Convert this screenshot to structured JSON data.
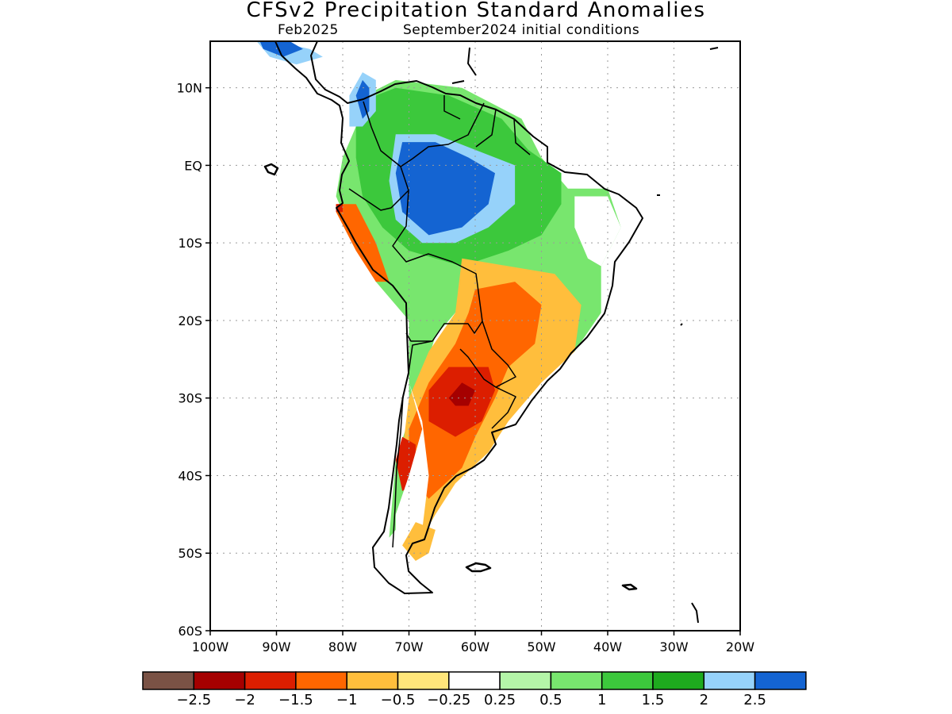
{
  "title": "CFSv2 Precipitation Standard Anomalies",
  "subtitle_left": "Feb2025",
  "subtitle_right": "September2024 initial conditions",
  "map": {
    "projection": "lat-lon",
    "lon_range": [
      -100,
      -20
    ],
    "lat_range": [
      -60,
      16
    ],
    "lat_ticks": [
      {
        "lat": 10,
        "label": "10N"
      },
      {
        "lat": 0,
        "label": "EQ"
      },
      {
        "lat": -10,
        "label": "10S"
      },
      {
        "lat": -20,
        "label": "20S"
      },
      {
        "lat": -30,
        "label": "30S"
      },
      {
        "lat": -40,
        "label": "40S"
      },
      {
        "lat": -50,
        "label": "50S"
      },
      {
        "lat": -60,
        "label": "60S"
      }
    ],
    "lon_ticks": [
      {
        "lon": -100,
        "label": "100W"
      },
      {
        "lon": -90,
        "label": "90W"
      },
      {
        "lon": -80,
        "label": "80W"
      },
      {
        "lon": -70,
        "label": "70W"
      },
      {
        "lon": -60,
        "label": "60W"
      },
      {
        "lon": -50,
        "label": "50W"
      },
      {
        "lon": -40,
        "label": "40W"
      },
      {
        "lon": -30,
        "label": "30W"
      },
      {
        "lon": -20,
        "label": "20W"
      }
    ],
    "grid": "dotted"
  },
  "colorbar": {
    "colors": [
      "#7a5245",
      "#a50000",
      "#dc1e00",
      "#ff6600",
      "#ffbe3c",
      "#ffe67a",
      "#ffffff",
      "#b4f5a8",
      "#78e66e",
      "#3cc83c",
      "#1eaa1e",
      "#96d2fa",
      "#1464d2"
    ],
    "labels": [
      "−2.5",
      "−2",
      "−1.5",
      "−1",
      "−0.5",
      "−0.25",
      "0.25",
      "0.5",
      "1",
      "1.5",
      "2",
      "2.5"
    ]
  },
  "anomaly_regions": [
    {
      "level": 0.5,
      "color": "#78e66e",
      "pts": [
        [
          -79,
          8
        ],
        [
          -72,
          11
        ],
        [
          -62,
          10
        ],
        [
          -53,
          6
        ],
        [
          -50,
          1
        ],
        [
          -46,
          -3
        ],
        [
          -40,
          -3
        ],
        [
          -38,
          -8
        ],
        [
          -41,
          -13
        ],
        [
          -41,
          -19
        ],
        [
          -45,
          -24
        ],
        [
          -55,
          -20
        ],
        [
          -62,
          -18
        ],
        [
          -66,
          -22
        ],
        [
          -69,
          -30
        ],
        [
          -72,
          -38
        ],
        [
          -73,
          -48
        ],
        [
          -71,
          -46
        ],
        [
          -69,
          -38
        ],
        [
          -70,
          -30
        ],
        [
          -70,
          -20
        ],
        [
          -75,
          -15
        ],
        [
          -78,
          -10
        ],
        [
          -81,
          -4
        ],
        [
          -80,
          1
        ],
        [
          -78,
          5
        ]
      ]
    },
    {
      "level": 1.5,
      "color": "#3cc83c",
      "pts": [
        [
          -78,
          8
        ],
        [
          -72,
          10
        ],
        [
          -64,
          9
        ],
        [
          -56,
          6
        ],
        [
          -52,
          2
        ],
        [
          -47,
          -1
        ],
        [
          -47,
          -5
        ],
        [
          -50,
          -9
        ],
        [
          -55,
          -11
        ],
        [
          -62,
          -13
        ],
        [
          -66,
          -12
        ],
        [
          -70,
          -11
        ],
        [
          -74,
          -8
        ],
        [
          -77,
          -4
        ],
        [
          -78,
          1
        ],
        [
          -78,
          5
        ]
      ]
    },
    {
      "level": 2,
      "color": "#96d2fa",
      "pts": [
        [
          -72,
          4
        ],
        [
          -66,
          4
        ],
        [
          -60,
          2
        ],
        [
          -54,
          0
        ],
        [
          -54,
          -5
        ],
        [
          -58,
          -8
        ],
        [
          -63,
          -10
        ],
        [
          -68,
          -10
        ],
        [
          -72,
          -7
        ],
        [
          -73,
          -2
        ]
      ]
    },
    {
      "level": 2.5,
      "color": "#1464d2",
      "pts": [
        [
          -71,
          3
        ],
        [
          -66,
          3
        ],
        [
          -61,
          1
        ],
        [
          -57,
          -1
        ],
        [
          -58,
          -5
        ],
        [
          -62,
          -8
        ],
        [
          -67,
          -9
        ],
        [
          -71,
          -6
        ],
        [
          -72,
          -1
        ]
      ]
    },
    {
      "level": 2,
      "color": "#96d2fa",
      "pts": [
        [
          -79,
          9
        ],
        [
          -77,
          12
        ],
        [
          -75,
          11
        ],
        [
          -75,
          7
        ],
        [
          -77,
          5
        ],
        [
          -79,
          5
        ]
      ]
    },
    {
      "level": 2.5,
      "color": "#1464d2",
      "pts": [
        [
          -78,
          9
        ],
        [
          -77,
          11
        ],
        [
          -76,
          10
        ],
        [
          -76,
          7
        ],
        [
          -77,
          6
        ]
      ]
    },
    {
      "level": 2,
      "color": "#96d2fa",
      "pts": [
        [
          -94,
          17
        ],
        [
          -90,
          16
        ],
        [
          -85,
          15
        ],
        [
          -83,
          14
        ],
        [
          -87,
          13
        ],
        [
          -91,
          14
        ]
      ]
    },
    {
      "level": 2.5,
      "color": "#1464d2",
      "pts": [
        [
          -93,
          17
        ],
        [
          -88,
          16
        ],
        [
          -86,
          15
        ],
        [
          -89,
          14
        ],
        [
          -92,
          15
        ]
      ]
    },
    {
      "level": -0.5,
      "color": "#ffbe3c",
      "pts": [
        [
          -62,
          -12
        ],
        [
          -55,
          -13
        ],
        [
          -48,
          -14
        ],
        [
          -44,
          -18
        ],
        [
          -45,
          -24
        ],
        [
          -50,
          -28
        ],
        [
          -55,
          -33
        ],
        [
          -58,
          -37
        ],
        [
          -63,
          -41
        ],
        [
          -66,
          -45
        ],
        [
          -68,
          -48
        ],
        [
          -70,
          -44
        ],
        [
          -71,
          -37
        ],
        [
          -70,
          -30
        ],
        [
          -67,
          -24
        ],
        [
          -63,
          -19
        ]
      ]
    },
    {
      "level": -1,
      "color": "#ff6600",
      "pts": [
        [
          -60,
          -16
        ],
        [
          -54,
          -15
        ],
        [
          -50,
          -18
        ],
        [
          -51,
          -23
        ],
        [
          -55,
          -26
        ],
        [
          -57,
          -30
        ],
        [
          -60,
          -35
        ],
        [
          -62,
          -39
        ],
        [
          -67,
          -43
        ],
        [
          -70,
          -40
        ],
        [
          -70,
          -34
        ],
        [
          -67,
          -28
        ],
        [
          -63,
          -23
        ],
        [
          -61,
          -19
        ]
      ]
    },
    {
      "level": -1.5,
      "color": "#dc1e00",
      "pts": [
        [
          -62,
          -26
        ],
        [
          -58,
          -26
        ],
        [
          -57,
          -29
        ],
        [
          -59,
          -33
        ],
        [
          -63,
          -35
        ],
        [
          -67,
          -33
        ],
        [
          -67,
          -29
        ],
        [
          -64,
          -26
        ]
      ]
    },
    {
      "level": -2,
      "color": "#a50000",
      "pts": [
        [
          -62,
          -28
        ],
        [
          -60,
          -29
        ],
        [
          -61,
          -31
        ],
        [
          -63,
          -31
        ],
        [
          -64,
          -30
        ]
      ]
    },
    {
      "level": -1.5,
      "color": "#dc1e00",
      "pts": [
        [
          -71,
          -35
        ],
        [
          -69,
          -36
        ],
        [
          -69,
          -41
        ],
        [
          -71,
          -42
        ],
        [
          -72,
          -38
        ]
      ]
    },
    {
      "level": -1,
      "color": "#ff6600",
      "pts": [
        [
          -81,
          -5
        ],
        [
          -78,
          -5
        ],
        [
          -75,
          -10
        ],
        [
          -73,
          -15
        ],
        [
          -75,
          -15
        ],
        [
          -78,
          -11
        ],
        [
          -81,
          -6
        ]
      ]
    },
    {
      "level": -1.5,
      "color": "#dc1e00",
      "pts": [
        [
          -81,
          -5
        ],
        [
          -80,
          -5
        ],
        [
          -80,
          -6
        ],
        [
          -81,
          -6
        ]
      ]
    },
    {
      "level": 0.25,
      "color": "#ffffff",
      "pts": [
        [
          -45,
          -4
        ],
        [
          -40,
          -4
        ],
        [
          -38,
          -8
        ],
        [
          -41,
          -13
        ],
        [
          -43,
          -12
        ],
        [
          -45,
          -8
        ]
      ]
    },
    {
      "level": 0.25,
      "color": "#ffffff",
      "pts": [
        [
          -70,
          -28
        ],
        [
          -68,
          -34
        ],
        [
          -70,
          -40
        ],
        [
          -72,
          -45
        ],
        [
          -72,
          -52
        ],
        [
          -70,
          -52
        ],
        [
          -68,
          -47
        ],
        [
          -67,
          -40
        ],
        [
          -68,
          -33
        ]
      ]
    },
    {
      "level": -0.5,
      "color": "#ffbe3c",
      "pts": [
        [
          -69,
          -46
        ],
        [
          -66,
          -47
        ],
        [
          -67,
          -50
        ],
        [
          -69,
          -51
        ],
        [
          -71,
          -49
        ]
      ]
    }
  ]
}
